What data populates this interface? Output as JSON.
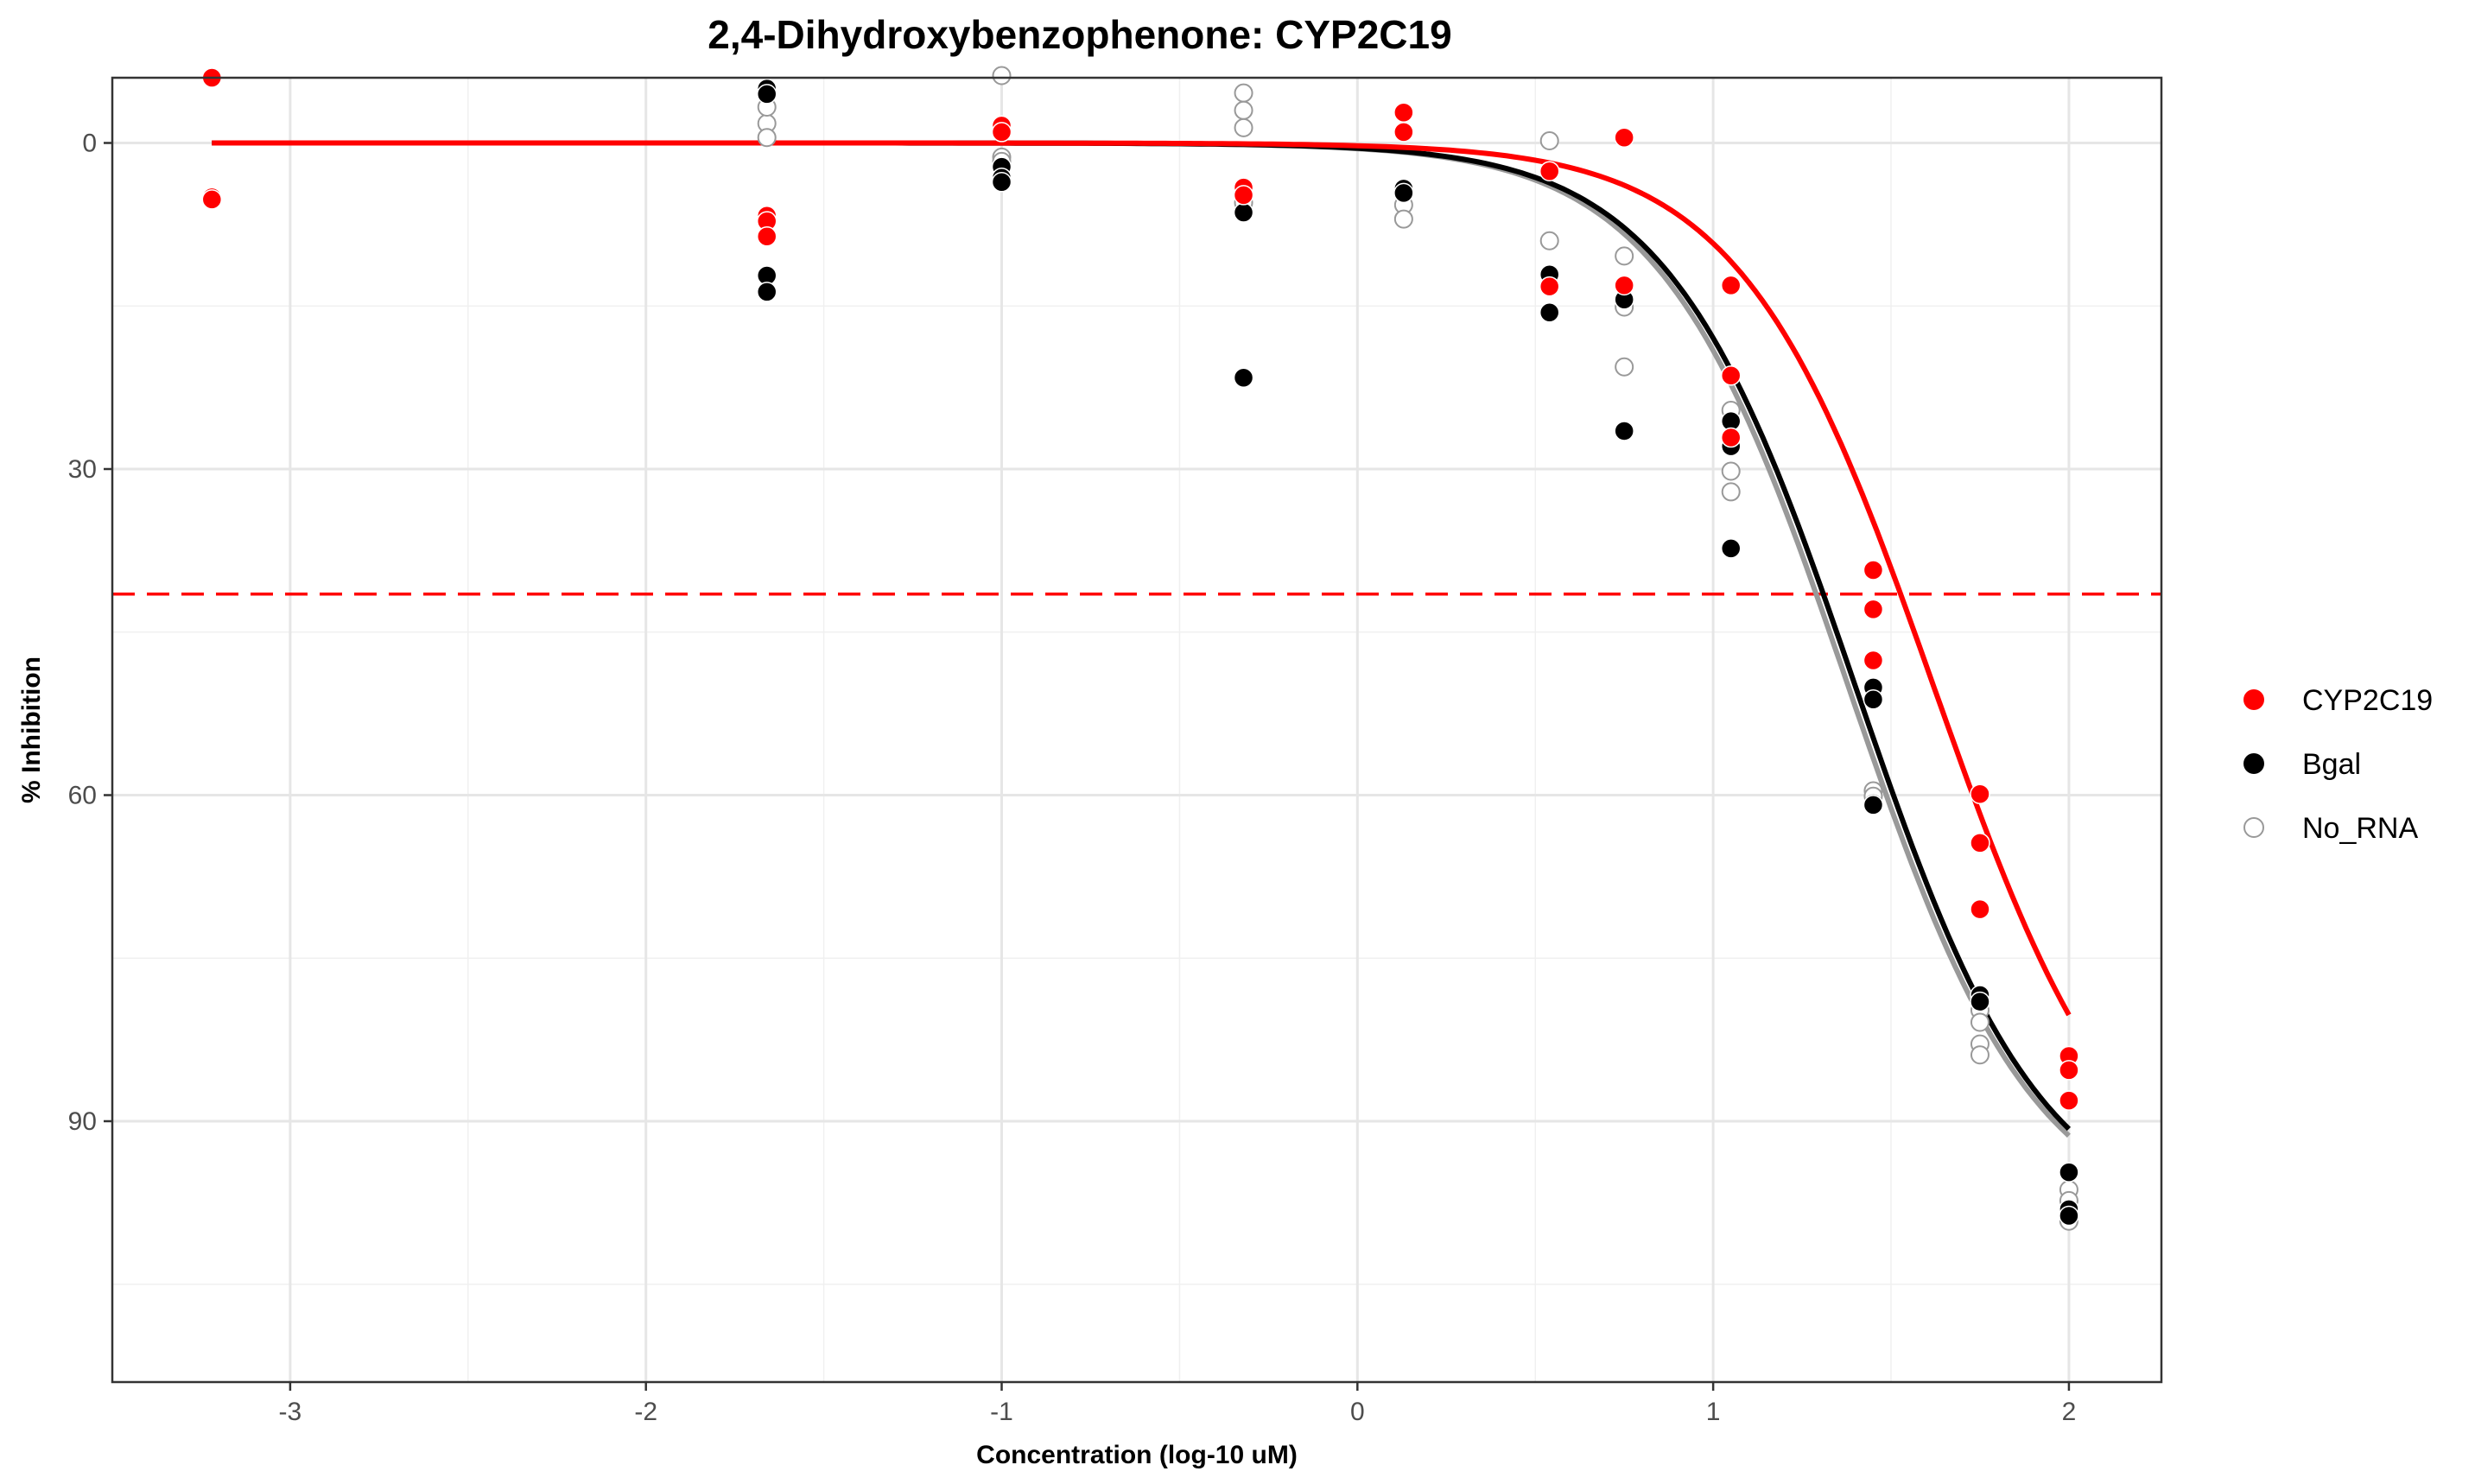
{
  "chart_data": {
    "type": "scatter",
    "title": "2,4-Dihydroxybenzophenone: CYP2C19",
    "xlabel": "Concentration (log-10 uM)",
    "ylabel": "% Inhibition",
    "xlim": [
      -3.5,
      2.26
    ],
    "ylim": [
      114,
      -6
    ],
    "y_reversed": true,
    "x_ticks": [
      -3,
      -2,
      -1,
      0,
      1,
      2
    ],
    "y_ticks": [
      0,
      30,
      60,
      90
    ],
    "grid": true,
    "reference_line": {
      "y": 41.5,
      "style": "dashed",
      "color": "#ff0000"
    },
    "legend_position": "right",
    "series": [
      {
        "name": "CYP2C19",
        "color": "#ff0000",
        "marker": "filled",
        "x": [
          -3.22,
          -3.22,
          -3.22,
          -1.66,
          -1.66,
          -1.66,
          -1.0,
          -1.0,
          -0.32,
          -0.32,
          0.13,
          0.13,
          0.54,
          0.54,
          0.75,
          0.75,
          1.05,
          1.05,
          1.05,
          1.45,
          1.45,
          1.45,
          1.75,
          1.75,
          1.75,
          2.0,
          2.0,
          2.0
        ],
        "y": [
          -6,
          5,
          5.2,
          6.7,
          7.2,
          8.6,
          -1.6,
          -1.0,
          4.1,
          4.8,
          -2.8,
          -1.0,
          2.6,
          13.2,
          -0.5,
          13.1,
          13.1,
          21.4,
          27.1,
          39.3,
          42.9,
          47.6,
          59.9,
          64.4,
          70.5,
          84.0,
          85.3,
          88.1
        ],
        "fit_curve": {
          "top": 0,
          "bottom": 100,
          "log_ic50": 1.62,
          "hill": 1.6
        }
      },
      {
        "name": "Bgal",
        "color": "#000000",
        "marker": "filled",
        "x": [
          -1.66,
          -1.66,
          -1.66,
          -1.66,
          -1.0,
          -1.0,
          -1.0,
          -0.32,
          -0.32,
          0.13,
          0.13,
          0.54,
          0.54,
          0.75,
          0.75,
          1.05,
          1.05,
          1.05,
          1.45,
          1.45,
          1.45,
          1.75,
          1.75,
          2.0,
          2.0,
          2.0
        ],
        "y": [
          -5,
          -4.5,
          12.2,
          13.7,
          2.2,
          3.2,
          3.6,
          6.4,
          21.6,
          4.2,
          4.6,
          12.1,
          15.6,
          14.4,
          26.5,
          25.6,
          27.9,
          37.3,
          50.1,
          51.2,
          60.9,
          78.4,
          79.0,
          94.7,
          98.1,
          98.7
        ],
        "fit_curve": {
          "top": 0,
          "bottom": 100,
          "log_ic50": 1.4,
          "hill": 1.65
        }
      },
      {
        "name": "No_RNA",
        "color": "#999999",
        "marker": "open",
        "x": [
          -3.22,
          -1.66,
          -1.66,
          -1.66,
          -1.66,
          -1.0,
          -1.0,
          -1.0,
          -0.32,
          -0.32,
          -0.32,
          -0.32,
          0.13,
          0.13,
          0.13,
          0.54,
          0.54,
          0.75,
          0.75,
          0.75,
          1.05,
          1.05,
          1.05,
          1.45,
          1.45,
          1.45,
          1.75,
          1.75,
          1.75,
          1.75,
          2.0,
          2.0,
          2.0,
          2.0
        ],
        "y": [
          5.0,
          -1.8,
          -3.3,
          -4.5,
          -0.5,
          -6.2,
          1.3,
          1.7,
          -4.6,
          -3.0,
          -1.4,
          5.5,
          -2.8,
          5.7,
          7.0,
          -0.2,
          9.0,
          10.4,
          15.1,
          20.6,
          24.6,
          30.2,
          32.1,
          59.6,
          60.1,
          60.8,
          79.8,
          80.9,
          82.9,
          83.9,
          96.3,
          97.3,
          98.3,
          99.2
        ],
        "fit_curve": {
          "top": 0,
          "bottom": 100,
          "log_ic50": 1.38,
          "hill": 1.65
        }
      }
    ]
  }
}
